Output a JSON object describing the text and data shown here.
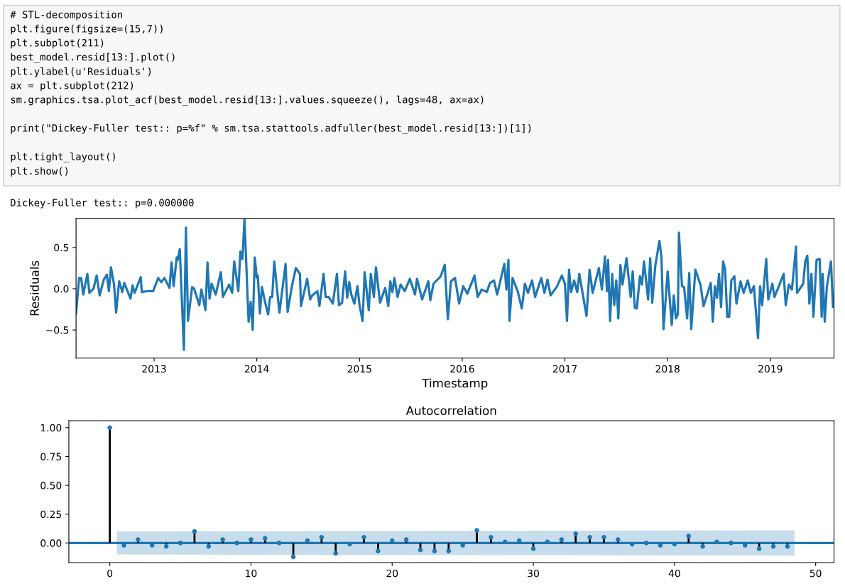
{
  "chart_data": [
    {
      "type": "line",
      "xlabel": "Timestamp",
      "ylabel": "Residuals",
      "grid": false,
      "annotations": [
        "# STL-decomposition\nplt.figure(figsize=(15,7))\nplt.subplot(211)\nbest_model.resid[13:].plot()\nplt.ylabel(u'Residuals')\nax = plt.subplot(212)\nsm.graphics.tsa.plot_acf(best_model.resid[13:].values.squeeze(), lags=48, ax=ax)\n\nprint(\"Dickey-Fuller test:: p=%f\" % sm.tsa.stattools.adfuller(best_model.resid[13:])[1])\n\nplt.tight_layout()\nplt.show()",
        "Dickey-Fuller test:: p=0.000000"
      ],
      "xlim": [
        2012.24,
        2019.62
      ],
      "xticks": [
        2013,
        2014,
        2015,
        2016,
        2017,
        2018,
        2019
      ],
      "ylim": [
        -0.84,
        0.85
      ],
      "yticks": [
        {
          "value": -0.5,
          "label": "−0.5"
        },
        {
          "value": 0,
          "label": "0.0"
        },
        {
          "value": 0.5,
          "label": "0.5"
        }
      ],
      "color": "#1f77b4",
      "x": [
        2012.24,
        2012.27,
        2012.29,
        2012.31,
        2012.35,
        2012.37,
        2012.41,
        2012.44,
        2012.47,
        2012.51,
        2012.54,
        2012.56,
        2012.58,
        2012.61,
        2012.63,
        2012.66,
        2012.69,
        2012.71,
        2012.77,
        2012.79,
        2012.81,
        2012.87,
        2012.88,
        2012.93,
        2012.99,
        2013.04,
        2013.07,
        2013.1,
        2013.15,
        2013.17,
        2013.19,
        2013.22,
        2013.23,
        2013.25,
        2013.29,
        2013.31,
        2013.33,
        2013.37,
        2013.39,
        2013.44,
        2013.46,
        2013.5,
        2013.52,
        2013.54,
        2013.56,
        2013.6,
        2013.65,
        2013.67,
        2013.73,
        2013.76,
        2013.78,
        2013.82,
        2013.84,
        2013.86,
        2013.88,
        2013.92,
        2013.94,
        2013.96,
        2013.98,
        2014.0,
        2014.01,
        2014.03,
        2014.05,
        2014.08,
        2014.11,
        2014.13,
        2014.15,
        2014.17,
        2014.22,
        2014.28,
        2014.3,
        2014.34,
        2014.38,
        2014.42,
        2014.43,
        2014.49,
        2014.52,
        2014.54,
        2014.59,
        2014.61,
        2014.65,
        2014.67,
        2014.7,
        2014.74,
        2014.78,
        2014.8,
        2014.83,
        2014.86,
        2014.88,
        2014.9,
        2014.92,
        2014.95,
        2014.98,
        2015.0,
        2015.03,
        2015.05,
        2015.09,
        2015.11,
        2015.14,
        2015.16,
        2015.2,
        2015.25,
        2015.28,
        2015.3,
        2015.32,
        2015.34,
        2015.37,
        2015.4,
        2015.44,
        2015.49,
        2015.54,
        2015.56,
        2015.61,
        2015.67,
        2015.69,
        2015.72,
        2015.79,
        2015.83,
        2015.86,
        2015.89,
        2015.93,
        2015.97,
        2016.01,
        2016.05,
        2016.12,
        2016.15,
        2016.19,
        2016.24,
        2016.27,
        2016.31,
        2016.34,
        2016.41,
        2016.43,
        2016.45,
        2016.46,
        2016.49,
        2016.54,
        2016.58,
        2016.61,
        2016.64,
        2016.68,
        2016.71,
        2016.77,
        2016.8,
        2016.83,
        2016.86,
        2016.92,
        2016.97,
        2017.0,
        2017.02,
        2017.04,
        2017.06,
        2017.09,
        2017.12,
        2017.14,
        2017.21,
        2017.24,
        2017.27,
        2017.33,
        2017.36,
        2017.39,
        2017.41,
        2017.42,
        2017.44,
        2017.46,
        2017.48,
        2017.5,
        2017.52,
        2017.54,
        2017.56,
        2017.6,
        2017.64,
        2017.66,
        2017.68,
        2017.7,
        2017.73,
        2017.75,
        2017.77,
        2017.81,
        2017.83,
        2017.85,
        2017.88,
        2017.92,
        2017.94,
        2017.96,
        2018.0,
        2018.04,
        2018.06,
        2018.08,
        2018.1,
        2018.11,
        2018.14,
        2018.16,
        2018.19,
        2018.21,
        2018.23,
        2018.27,
        2018.32,
        2018.35,
        2018.42,
        2018.44,
        2018.46,
        2018.48,
        2018.5,
        2018.52,
        2018.54,
        2018.56,
        2018.58,
        2018.6,
        2018.62,
        2018.65,
        2018.67,
        2018.71,
        2018.74,
        2018.78,
        2018.81,
        2018.84,
        2018.88,
        2018.9,
        2018.92,
        2018.96,
        2018.98,
        2019.02,
        2019.04,
        2019.07,
        2019.13,
        2019.15,
        2019.18,
        2019.21,
        2019.25,
        2019.26,
        2019.32,
        2019.34,
        2019.36,
        2019.38,
        2019.4,
        2019.42,
        2019.45,
        2019.48,
        2019.5,
        2019.51,
        2019.53,
        2019.55,
        2019.59,
        2019.61
      ],
      "values": [
        -0.3,
        0.13,
        0.13,
        -0.07,
        0.18,
        -0.05,
        0,
        0.16,
        -0.08,
        0.11,
        0.17,
        -0.03,
        0.26,
        0.05,
        -0.29,
        0.09,
        -0.04,
        0.07,
        -0.12,
        0.04,
        -0.05,
        0.14,
        -0.04,
        -0.03,
        -0.03,
        0.13,
        0.08,
        0.13,
        0.01,
        0.32,
        0.03,
        0.38,
        0.35,
        0.48,
        -0.74,
        0.74,
        -0.39,
        0.02,
        0,
        -0.2,
        -0.01,
        -0.26,
        0.32,
        -0.12,
        0.06,
        -0.07,
        0.2,
        -0.1,
        0.05,
        -0.05,
        0.33,
        -0.03,
        0.45,
        0.36,
        0.84,
        -0.4,
        -0.16,
        -0.5,
        0.38,
        0.13,
        0.16,
        -0.3,
        0.02,
        -0.16,
        -0.31,
        -0.1,
        -0.1,
        0.33,
        -0.29,
        0.3,
        -0.28,
        0.02,
        0.25,
        0.18,
        -0.21,
        0.12,
        -0.13,
        -0.08,
        -0.03,
        -0.21,
        0.18,
        -0.1,
        -0.1,
        -0.18,
        0.18,
        -0.2,
        -0.17,
        0.21,
        -0.11,
        0.08,
        -0.07,
        -0.18,
        0.03,
        -0.2,
        -0.39,
        0.2,
        -0.26,
        0.18,
        -0.1,
        0.26,
        -0.17,
        0.01,
        -0.21,
        0.09,
        -0.04,
        0.13,
        -0.1,
        0.05,
        -0.03,
        0.12,
        -0.07,
        0.12,
        -0.13,
        0.09,
        -0.14,
        0.06,
        0.15,
        0.29,
        -0.37,
        0.09,
        0.13,
        -0.18,
        0.03,
        -0.06,
        0.16,
        -0.1,
        -0.01,
        -0.04,
        0.07,
        0.1,
        -0.07,
        0.3,
        -0.01,
        0.35,
        -0.39,
        0.13,
        -0.03,
        -0.24,
        0.06,
        -0.05,
        0.1,
        -0.1,
        0.13,
        -0.05,
        0.11,
        -0.08,
        0.02,
        0.16,
        0.06,
        -0.39,
        0.23,
        -0.04,
        0.1,
        -0.04,
        0.18,
        -0.33,
        0.23,
        -0.05,
        0.25,
        -0.01,
        0.39,
        -0.03,
        0.35,
        -0.39,
        0.18,
        -0.2,
        0.1,
        -0.36,
        0.29,
        0.05,
        0.37,
        -0.1,
        0.21,
        -0.23,
        -0.24,
        0.15,
        0.05,
        0.33,
        -0.13,
        0.37,
        -0.17,
        0.28,
        0.58,
        0.38,
        -0.49,
        0.21,
        -0.44,
        -0.08,
        -0.36,
        -0.31,
        0.68,
        0.03,
        0.02,
        -0.36,
        0.19,
        -0.49,
        0.23,
        0.05,
        -0.21,
        0.07,
        -0.4,
        0.03,
        -0.11,
        0.18,
        -0.22,
        0.33,
        0.23,
        -0.34,
        -0.34,
        0.1,
        0.15,
        -0.18,
        0.09,
        -0.05,
        0.1,
        -0.05,
        0.03,
        -0.6,
        0.03,
        -0.2,
        0.36,
        -0.13,
        0.06,
        -0.1,
        -0.01,
        0.18,
        -0.2,
        0.05,
        -0.01,
        0.51,
        -0.05,
        0.06,
        0.33,
        0.4,
        -0.18,
        0.18,
        -0.34,
        0.35,
        0.36,
        -0.34,
        0.18,
        -0.4,
        0.02,
        0.33,
        -0.22
      ]
    },
    {
      "type": "lollipop",
      "title": "Autocorrelation",
      "xlim": [
        -2.9,
        51.3
      ],
      "xticks": [
        0,
        10,
        20,
        30,
        40,
        50
      ],
      "ylim": [
        -0.17,
        1.06
      ],
      "yticks": [
        {
          "value": 0,
          "label": "0.00"
        },
        {
          "value": 0.25,
          "label": "0.25"
        },
        {
          "value": 0.5,
          "label": "0.50"
        },
        {
          "value": 0.75,
          "label": "0.75"
        },
        {
          "value": 1,
          "label": "1.00"
        }
      ],
      "series": [
        {
          "type": "line",
          "color": "#1f77b4",
          "x": [
            -2.9,
            0.5,
            48.5,
            51.3
          ],
          "values": [
            0,
            0,
            0,
            0
          ],
          "lower": [
            null,
            -0.1,
            -0.11,
            null
          ],
          "upper": [
            null,
            0.1,
            0.11,
            null
          ]
        },
        {
          "type": "lollipop",
          "color": "#1f77b4",
          "marker": "circle",
          "x": [
            0,
            1,
            2,
            3,
            4,
            5,
            6,
            7,
            8,
            9,
            10,
            11,
            12,
            13,
            14,
            15,
            16,
            17,
            18,
            19,
            20,
            21,
            22,
            23,
            24,
            25,
            26,
            27,
            28,
            29,
            30,
            31,
            32,
            33,
            34,
            35,
            36,
            37,
            38,
            39,
            40,
            41,
            42,
            43,
            44,
            45,
            46,
            47,
            48
          ],
          "values": [
            1.0,
            -0.02,
            0.03,
            -0.02,
            -0.03,
            0.0,
            0.1,
            -0.03,
            0.03,
            0.0,
            0.03,
            0.04,
            0.0,
            -0.12,
            0.02,
            0.05,
            -0.09,
            -0.01,
            0.05,
            -0.07,
            0.02,
            0.03,
            -0.06,
            -0.07,
            -0.07,
            -0.02,
            0.11,
            0.05,
            0.01,
            0.02,
            -0.05,
            0.01,
            0.03,
            0.08,
            0.05,
            0.05,
            0.03,
            -0.01,
            0.0,
            -0.02,
            -0.01,
            0.06,
            -0.03,
            0.01,
            0.0,
            -0.02,
            -0.05,
            -0.03,
            -0.03
          ]
        }
      ]
    }
  ]
}
